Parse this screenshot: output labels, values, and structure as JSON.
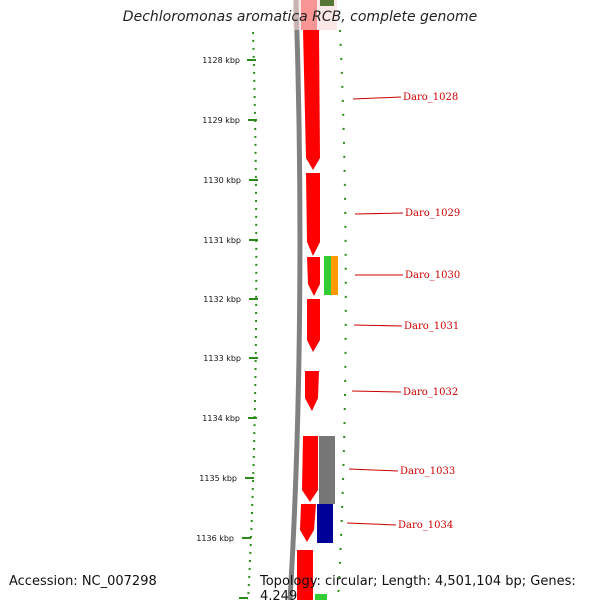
{
  "title": "Dechloromonas aromatica RCB, complete genome",
  "footer": {
    "accession": "Accession: NC_007298",
    "summary": "Topology: circular; Length: 4,501,104 bp; Genes: 4,249"
  },
  "colors": {
    "cds": "#ff0000",
    "backbone": "#808080",
    "tick": "#2b8a1a",
    "label": "#cc0000",
    "green": "#33cc33",
    "orange": "#ff9900",
    "gray": "#777777",
    "navy": "#000099"
  },
  "ticks": [
    "1128 kbp",
    "1129 kbp",
    "1130 kbp",
    "1131 kbp",
    "1132 kbp",
    "1133 kbp",
    "1134 kbp",
    "1135 kbp",
    "1136 kbp"
  ],
  "genes": [
    "Daro_1028",
    "Daro_1029",
    "Daro_1030",
    "Daro_1031",
    "Daro_1032",
    "Daro_1033",
    "Daro_1034"
  ]
}
